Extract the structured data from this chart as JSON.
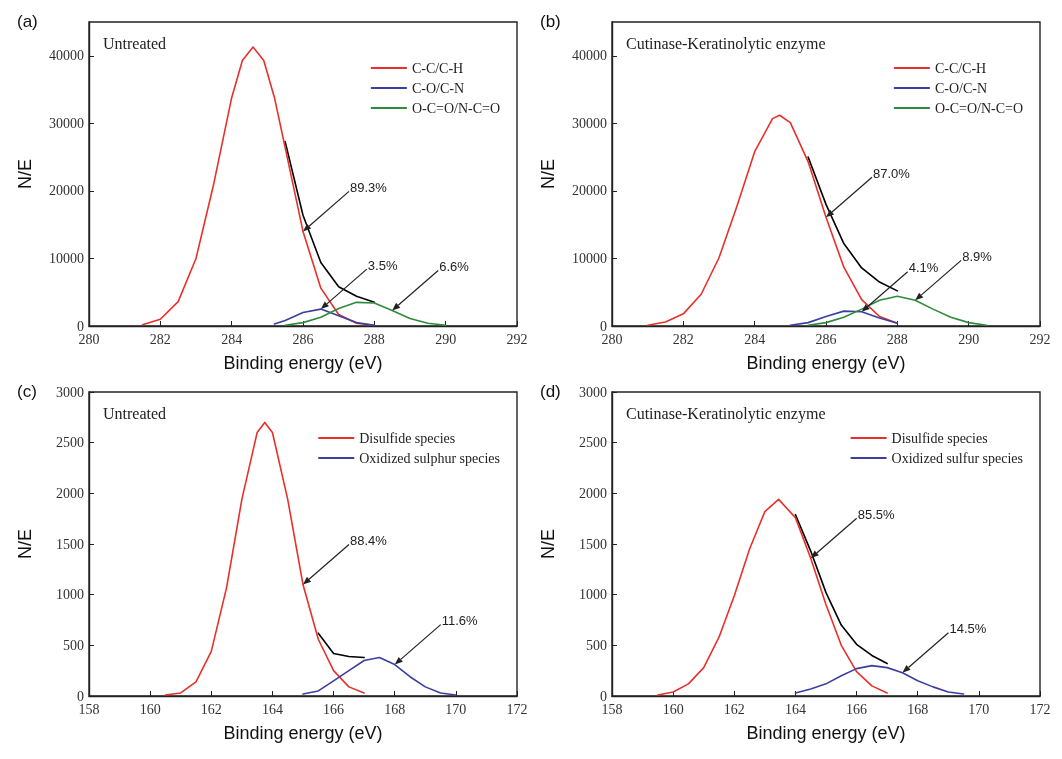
{
  "chart_data": [
    {
      "type": "line",
      "title": "(a)",
      "subtitle": "Untreated",
      "xlabel": "Binding energy (eV)",
      "ylabel": "N/E",
      "xlim": [
        280,
        292
      ],
      "xticks": [
        280,
        282,
        284,
        286,
        288,
        290,
        292
      ],
      "ylim": [
        0,
        45000
      ],
      "yticks": [
        0,
        10000,
        20000,
        30000,
        40000
      ],
      "grid": false,
      "legend": "top right",
      "marker": "none",
      "line_style": "solid",
      "x": [
        281.5,
        282,
        282.5,
        283,
        283.5,
        284,
        284.3,
        284.6,
        284.9,
        285.2,
        285.5,
        286,
        286.5,
        287,
        287.5,
        288,
        288.5,
        289,
        289.5,
        290
      ],
      "series": [
        {
          "name": "C-C/C-H",
          "color": "#e8302a",
          "values": [
            200,
            1000,
            3600,
            10000,
            21100,
            33800,
            39300,
            41300,
            39300,
            33800,
            26400,
            14000,
            5600,
            1700,
            400,
            100,
            null,
            null,
            null,
            null
          ]
        },
        {
          "name": "C-O/C-N",
          "color": "#3b3fa0",
          "values": [
            null,
            null,
            null,
            null,
            null,
            null,
            null,
            null,
            null,
            300,
            800,
            2000,
            2500,
            1500,
            500,
            100,
            null,
            null,
            null,
            null
          ]
        },
        {
          "name": "O-C=O/N-C=O",
          "color": "#2e8b3a",
          "values": [
            null,
            null,
            null,
            null,
            null,
            null,
            null,
            null,
            null,
            null,
            100,
            500,
            1300,
            2600,
            3500,
            3400,
            2300,
            1100,
            400,
            100
          ]
        },
        {
          "color": "#000000",
          "values": [
            null,
            null,
            null,
            null,
            null,
            null,
            null,
            null,
            null,
            null,
            27300,
            16400,
            9400,
            5800,
            4400,
            3500,
            null,
            null,
            null,
            null
          ]
        }
      ],
      "annotations": [
        {
          "text": "89.3%",
          "x": 286,
          "y": 14000
        },
        {
          "text": "3.5%",
          "x": 286.5,
          "y": 2500
        },
        {
          "text": "6.6%",
          "x": 288.5,
          "y": 2300
        }
      ]
    },
    {
      "type": "line",
      "title": "(b)",
      "subtitle": "Cutinase-Keratinolytic enzyme",
      "xlabel": "Binding energy (eV)",
      "ylabel": "N/E",
      "xlim": [
        280,
        292
      ],
      "xticks": [
        280,
        282,
        284,
        286,
        288,
        290,
        292
      ],
      "ylim": [
        0,
        45000
      ],
      "yticks": [
        0,
        10000,
        20000,
        30000,
        40000
      ],
      "grid": false,
      "legend": "top right",
      "marker": "none",
      "line_style": "solid",
      "x": [
        281,
        281.5,
        282,
        282.5,
        283,
        283.5,
        284,
        284.5,
        284.7,
        285,
        285.5,
        286,
        286.5,
        287,
        287.5,
        288,
        288.5,
        289,
        289.5,
        290,
        290.5
      ],
      "series": [
        {
          "name": "C-C/C-H",
          "color": "#e8302a",
          "values": [
            100,
            600,
            1800,
            4700,
            10100,
            17700,
            25800,
            30700,
            31200,
            30100,
            24300,
            16100,
            8700,
            3900,
            1400,
            400,
            null,
            null,
            null,
            null,
            null
          ]
        },
        {
          "name": "C-O/C-N",
          "color": "#3b3fa0",
          "values": [
            null,
            null,
            null,
            null,
            null,
            null,
            null,
            null,
            null,
            100,
            500,
            1400,
            2200,
            2100,
            1200,
            400,
            null,
            null,
            null,
            null,
            null
          ]
        },
        {
          "name": "O-C=O/N-C=O",
          "color": "#2e8b3a",
          "values": [
            null,
            null,
            null,
            null,
            null,
            null,
            null,
            null,
            null,
            null,
            100,
            500,
            1300,
            2500,
            3800,
            4400,
            3800,
            2500,
            1300,
            500,
            100
          ]
        },
        {
          "color": "#000000",
          "values": [
            null,
            null,
            null,
            null,
            null,
            null,
            null,
            null,
            null,
            null,
            25000,
            18000,
            12200,
            8600,
            6500,
            5200,
            null,
            null,
            null,
            null,
            null
          ]
        }
      ],
      "annotations": [
        {
          "text": "87.0%",
          "x": 286,
          "y": 16100
        },
        {
          "text": "4.1%",
          "x": 287,
          "y": 2100
        },
        {
          "text": "8.9%",
          "x": 288.5,
          "y": 3800
        }
      ]
    },
    {
      "type": "line",
      "title": "(c)",
      "subtitle": "Untreated",
      "xlabel": "Binding energy (eV)",
      "ylabel": "N/E",
      "xlim": [
        158,
        172
      ],
      "xticks": [
        158,
        160,
        162,
        164,
        166,
        168,
        170,
        172
      ],
      "ylim": [
        0,
        3000
      ],
      "yticks": [
        0,
        500,
        1000,
        1500,
        2000,
        2500,
        3000
      ],
      "grid": false,
      "legend": "top right",
      "marker": "none",
      "line_style": "solid",
      "x": [
        160.5,
        161,
        161.5,
        162,
        162.5,
        163,
        163.5,
        163.75,
        164,
        164.5,
        165,
        165.5,
        166,
        166.5,
        167,
        167.5,
        168,
        168.5,
        169,
        169.5,
        170
      ],
      "series": [
        {
          "name": "Disulfide species",
          "color": "#e8302a",
          "values": [
            10,
            30,
            140,
            440,
            1070,
            1940,
            2600,
            2700,
            2600,
            1940,
            1100,
            560,
            250,
            90,
            30,
            null,
            null,
            null,
            null,
            null,
            null
          ]
        },
        {
          "name": "Oxidized sulphur species",
          "color": "#3b3fa0",
          "values": [
            null,
            null,
            null,
            null,
            null,
            null,
            null,
            null,
            null,
            null,
            20,
            50,
            150,
            250,
            350,
            380,
            310,
            190,
            90,
            30,
            10
          ]
        },
        {
          "color": "#000000",
          "values": [
            null,
            null,
            null,
            null,
            null,
            null,
            null,
            null,
            null,
            null,
            null,
            620,
            420,
            390,
            380,
            null,
            null,
            null,
            null,
            null,
            null
          ]
        }
      ],
      "annotations": [
        {
          "text": "88.4%",
          "x": 165,
          "y": 1100
        },
        {
          "text": "11.6%",
          "x": 168,
          "y": 310
        }
      ]
    },
    {
      "type": "line",
      "title": "(d)",
      "subtitle": "Cutinase-Keratinolytic enzyme",
      "xlabel": "Binding energy (eV)",
      "ylabel": "N/E",
      "xlim": [
        158,
        172
      ],
      "xticks": [
        158,
        160,
        162,
        164,
        166,
        168,
        170,
        172
      ],
      "ylim": [
        0,
        3000
      ],
      "yticks": [
        0,
        500,
        1000,
        1500,
        2000,
        2500,
        3000
      ],
      "grid": false,
      "legend": "top right",
      "marker": "none",
      "line_style": "solid",
      "x": [
        159.5,
        160,
        160.5,
        161,
        161.5,
        162,
        162.5,
        163,
        163.45,
        164,
        164.5,
        165,
        165.5,
        166,
        166.5,
        167,
        167.5,
        168,
        168.5,
        169,
        169.5
      ],
      "series": [
        {
          "name": "Disulfide species",
          "color": "#e8302a",
          "values": [
            10,
            40,
            120,
            280,
            580,
            990,
            1450,
            1820,
            1940,
            1760,
            1360,
            900,
            500,
            240,
            100,
            30,
            null,
            null,
            null,
            null,
            null
          ]
        },
        {
          "name": "Oxidized sulfur species",
          "color": "#3b3fa0",
          "values": [
            null,
            null,
            null,
            null,
            null,
            null,
            null,
            null,
            null,
            30,
            70,
            120,
            200,
            270,
            300,
            280,
            230,
            150,
            90,
            40,
            20
          ]
        },
        {
          "color": "#000000",
          "values": [
            null,
            null,
            null,
            null,
            null,
            null,
            null,
            null,
            null,
            1790,
            1430,
            1020,
            700,
            510,
            400,
            320,
            null,
            null,
            null,
            null,
            null
          ]
        }
      ],
      "annotations": [
        {
          "text": "85.5%",
          "x": 164.5,
          "y": 1360
        },
        {
          "text": "14.5%",
          "x": 167.5,
          "y": 230
        }
      ]
    }
  ]
}
